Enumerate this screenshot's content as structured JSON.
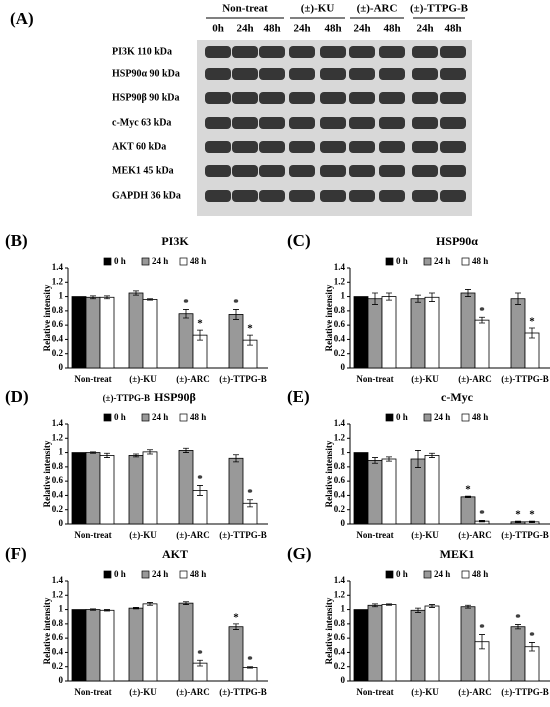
{
  "blot": {
    "panel": "(A)",
    "groups": [
      "Non-treat",
      "(±)-KU",
      "(±)-ARC",
      "(±)-TTPG-B"
    ],
    "lanes": [
      "0h",
      "24h",
      "48h",
      "24h",
      "48h",
      "24h",
      "48h",
      "24h",
      "48h"
    ],
    "proteins": [
      "PI3K 110 kDa",
      "HSP90α 90 kDa",
      "HSP90β 90 kDa",
      "c-Myc 63 kDa",
      "AKT 60 kDa",
      "MEK1 45 kDa",
      "GAPDH 36 kDa"
    ]
  },
  "chart_data": [
    {
      "type": "bar",
      "panel": "(B)",
      "title": "PI3K",
      "ylabel": "Relative intensity",
      "categories": [
        "Non-treat",
        "(±)-KU",
        "(±)-ARC",
        "(±)-TTPG-B"
      ],
      "series": [
        {
          "name": "0 h",
          "color": "#000000",
          "values": [
            1.0,
            null,
            null,
            null
          ],
          "errors": [
            0,
            null,
            null,
            null
          ],
          "significance": [
            null,
            null,
            null,
            null
          ]
        },
        {
          "name": "24 h",
          "color": "#999999",
          "values": [
            0.99,
            1.05,
            0.76,
            0.75
          ],
          "errors": [
            0.02,
            0.03,
            0.06,
            0.07
          ],
          "significance": [
            null,
            null,
            "*",
            "*"
          ]
        },
        {
          "name": "48 h",
          "color": "#ffffff",
          "values": [
            0.99,
            0.96,
            0.46,
            0.39
          ],
          "errors": [
            0.02,
            0.01,
            0.07,
            0.07
          ],
          "significance": [
            null,
            null,
            "*",
            "*"
          ]
        }
      ],
      "ylim": [
        0,
        1.4
      ],
      "yticks": [
        0,
        0.2,
        0.4,
        0.6,
        0.8,
        1,
        1.2,
        1.4
      ]
    },
    {
      "type": "bar",
      "panel": "(C)",
      "title": "HSP90α",
      "ylabel": "Relative intensity",
      "categories": [
        "Non-treat",
        "(±)-KU",
        "(±)-ARC",
        "(±)-TTPG-B"
      ],
      "series": [
        {
          "name": "0 h",
          "color": "#000000",
          "values": [
            1.0,
            null,
            null,
            null
          ],
          "errors": [
            0,
            null,
            null,
            null
          ],
          "significance": [
            null,
            null,
            null,
            null
          ]
        },
        {
          "name": "24 h",
          "color": "#999999",
          "values": [
            0.97,
            0.97,
            1.05,
            0.97
          ],
          "errors": [
            0.08,
            0.05,
            0.05,
            0.08
          ],
          "significance": [
            null,
            null,
            null,
            null
          ]
        },
        {
          "name": "48 h",
          "color": "#ffffff",
          "values": [
            1.0,
            0.99,
            0.67,
            0.49
          ],
          "errors": [
            0.05,
            0.06,
            0.04,
            0.07
          ],
          "significance": [
            null,
            null,
            "*",
            "*"
          ]
        }
      ],
      "ylim": [
        0,
        1.4
      ],
      "yticks": [
        0,
        0.2,
        0.4,
        0.6,
        0.8,
        1,
        1.2,
        1.4
      ]
    },
    {
      "type": "bar",
      "panel": "(D)",
      "title": "HSP90β",
      "annotation": "(±)-TTPG-B",
      "ylabel": "Relative intensity",
      "categories": [
        "Non-treat",
        "(±)-KU",
        "(±)-ARC",
        "(±)-TTPG-B"
      ],
      "series": [
        {
          "name": "0 h",
          "color": "#000000",
          "values": [
            1.0,
            null,
            null,
            null
          ],
          "errors": [
            0,
            null,
            null,
            null
          ],
          "significance": [
            null,
            null,
            null,
            null
          ]
        },
        {
          "name": "24 h",
          "color": "#999999",
          "values": [
            1.0,
            0.96,
            1.03,
            0.92
          ],
          "errors": [
            0.01,
            0.02,
            0.03,
            0.05
          ],
          "significance": [
            null,
            null,
            null,
            null
          ]
        },
        {
          "name": "48 h",
          "color": "#ffffff",
          "values": [
            0.96,
            1.01,
            0.47,
            0.29
          ],
          "errors": [
            0.03,
            0.03,
            0.07,
            0.05
          ],
          "significance": [
            null,
            null,
            "*",
            "*"
          ]
        }
      ],
      "ylim": [
        0,
        1.4
      ],
      "yticks": [
        0,
        0.2,
        0.4,
        0.6,
        0.8,
        1,
        1.2,
        1.4
      ]
    },
    {
      "type": "bar",
      "panel": "(E)",
      "title": "c-Myc",
      "ylabel": "Relative intensity",
      "categories": [
        "Non-treat",
        "(±)-KU",
        "(±)-ARC",
        "(±)-TTPG-B"
      ],
      "series": [
        {
          "name": "0 h",
          "color": "#000000",
          "values": [
            1.0,
            null,
            null,
            null
          ],
          "errors": [
            0,
            null,
            null,
            null
          ],
          "significance": [
            null,
            null,
            null,
            null
          ]
        },
        {
          "name": "24 h",
          "color": "#999999",
          "values": [
            0.89,
            0.91,
            0.38,
            0.03
          ],
          "errors": [
            0.04,
            0.12,
            0.01,
            0.01
          ],
          "significance": [
            null,
            null,
            "*",
            "*"
          ]
        },
        {
          "name": "48 h",
          "color": "#ffffff",
          "values": [
            0.91,
            0.96,
            0.04,
            0.03
          ],
          "errors": [
            0.03,
            0.03,
            0.01,
            0.01
          ],
          "significance": [
            null,
            null,
            "*",
            "*"
          ]
        }
      ],
      "ylim": [
        0,
        1.4
      ],
      "yticks": [
        0,
        0.2,
        0.4,
        0.6,
        0.8,
        1,
        1.2,
        1.4
      ]
    },
    {
      "type": "bar",
      "panel": "(F)",
      "title": "AKT",
      "ylabel": "Relative intensity",
      "categories": [
        "Non-treat",
        "(±)-KU",
        "(±)-ARC",
        "(±)-TTPG-B"
      ],
      "series": [
        {
          "name": "0 h",
          "color": "#000000",
          "values": [
            1.0,
            null,
            null,
            null
          ],
          "errors": [
            0,
            null,
            null,
            null
          ],
          "significance": [
            null,
            null,
            null,
            null
          ]
        },
        {
          "name": "24 h",
          "color": "#999999",
          "values": [
            1.0,
            1.02,
            1.09,
            0.76
          ],
          "errors": [
            0.01,
            0.01,
            0.02,
            0.04
          ],
          "significance": [
            null,
            null,
            null,
            "*"
          ]
        },
        {
          "name": "48 h",
          "color": "#ffffff",
          "values": [
            0.99,
            1.08,
            0.25,
            0.19
          ],
          "errors": [
            0.01,
            0.02,
            0.04,
            0.01
          ],
          "significance": [
            null,
            null,
            "*",
            "*"
          ]
        }
      ],
      "ylim": [
        0,
        1.4
      ],
      "yticks": [
        0,
        0.2,
        0.4,
        0.6,
        0.8,
        1,
        1.2,
        1.4
      ]
    },
    {
      "type": "bar",
      "panel": "(G)",
      "title": "MEK1",
      "ylabel": "Relative intensity",
      "categories": [
        "Non-treat",
        "(±)-KU",
        "(±)-ARC",
        "(±)-TTPG-B"
      ],
      "series": [
        {
          "name": "0 h",
          "color": "#000000",
          "values": [
            1.0,
            null,
            null,
            null
          ],
          "errors": [
            0,
            null,
            null,
            null
          ],
          "significance": [
            null,
            null,
            null,
            null
          ]
        },
        {
          "name": "24 h",
          "color": "#999999",
          "values": [
            1.06,
            0.99,
            1.04,
            0.76
          ],
          "errors": [
            0.02,
            0.03,
            0.02,
            0.03
          ],
          "significance": [
            null,
            null,
            null,
            "*"
          ]
        },
        {
          "name": "48 h",
          "color": "#ffffff",
          "values": [
            1.07,
            1.05,
            0.55,
            0.48
          ],
          "errors": [
            0.01,
            0.02,
            0.1,
            0.06
          ],
          "significance": [
            null,
            null,
            "*",
            "*"
          ]
        }
      ],
      "ylim": [
        0,
        1.4
      ],
      "yticks": [
        0,
        0.2,
        0.4,
        0.6,
        0.8,
        1,
        1.2,
        1.4
      ]
    }
  ]
}
